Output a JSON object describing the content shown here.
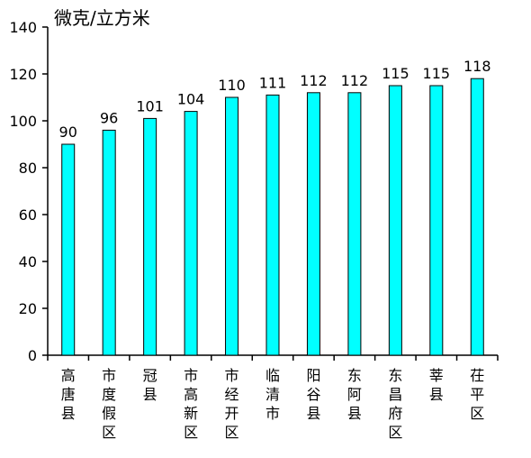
{
  "chart_data": {
    "type": "bar",
    "unit_label": "微克/立方米",
    "categories": [
      "高唐县",
      "市度假区",
      "冠县",
      "市高新区",
      "市经开区",
      "临清市",
      "阳谷县",
      "东阿县",
      "东昌府区",
      "莘县",
      "茌平区"
    ],
    "values": [
      90,
      96,
      101,
      104,
      110,
      111,
      112,
      112,
      115,
      115,
      118
    ],
    "ylim": [
      0,
      140
    ],
    "yticks": [
      0,
      20,
      40,
      60,
      80,
      100,
      120,
      140
    ],
    "grid": false,
    "legend": "none",
    "bar_color": "#00ffff",
    "bar_stroke": "#000000"
  }
}
